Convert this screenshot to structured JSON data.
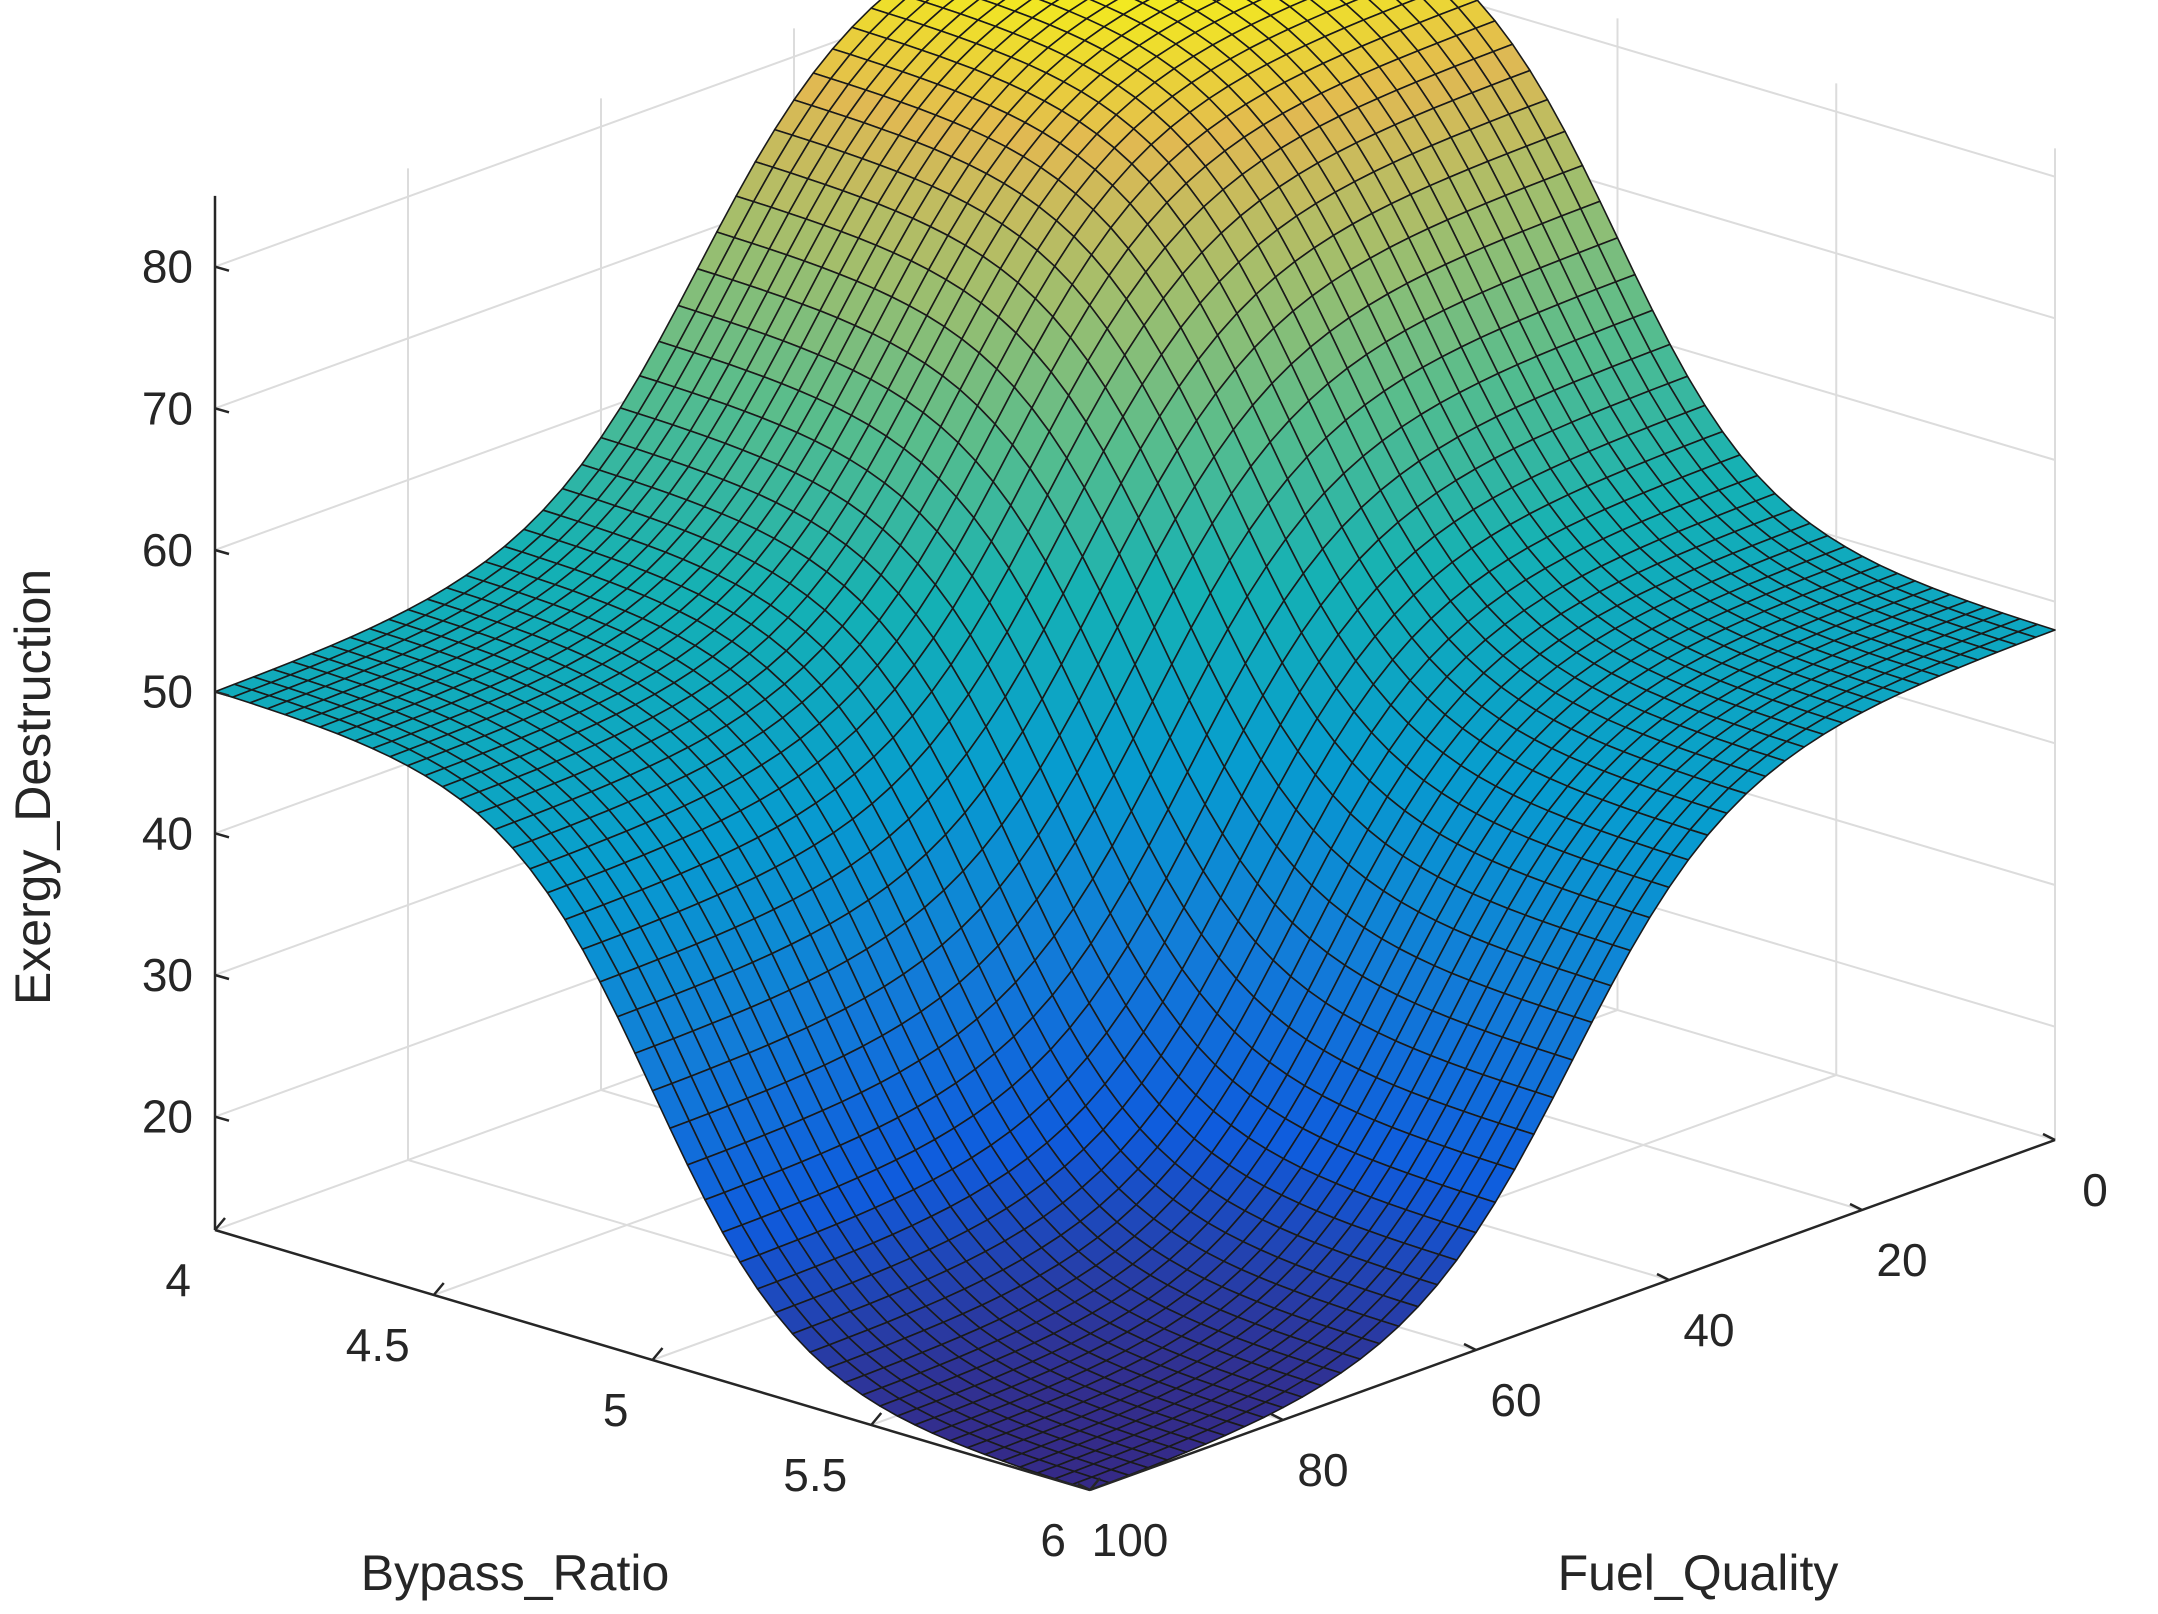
{
  "chart_data": {
    "type": "surface",
    "title": "",
    "xlabel": "Bypass_Ratio",
    "ylabel": "Fuel_Quality",
    "zlabel": "Exergy_Destruction",
    "x_ticks": [
      4,
      4.5,
      5,
      5.5,
      6
    ],
    "x_tick_labels": [
      "4",
      "4.5",
      "5",
      "5.5",
      "6"
    ],
    "y_ticks": [
      0,
      20,
      40,
      60,
      80,
      100
    ],
    "y_tick_labels": [
      "0",
      "20",
      "40",
      "60",
      "80",
      "100"
    ],
    "z_ticks": [
      20,
      30,
      40,
      50,
      60,
      70,
      80
    ],
    "z_tick_labels": [
      "20",
      "30",
      "40",
      "50",
      "60",
      "70",
      "80"
    ],
    "xlim": [
      4,
      6
    ],
    "ylim": [
      0,
      100
    ],
    "zlim": [
      12,
      85
    ],
    "grid": true,
    "colormap": "parula",
    "grid_resolution": 50,
    "corner_values": [
      {
        "bypass_ratio": 4,
        "fuel_quality": 0,
        "exergy_destruction": 85
      },
      {
        "bypass_ratio": 4,
        "fuel_quality": 100,
        "exergy_destruction": 50
      },
      {
        "bypass_ratio": 6,
        "fuel_quality": 0,
        "exergy_destruction": 48
      },
      {
        "bypass_ratio": 6,
        "fuel_quality": 100,
        "exergy_destruction": 12
      }
    ]
  }
}
